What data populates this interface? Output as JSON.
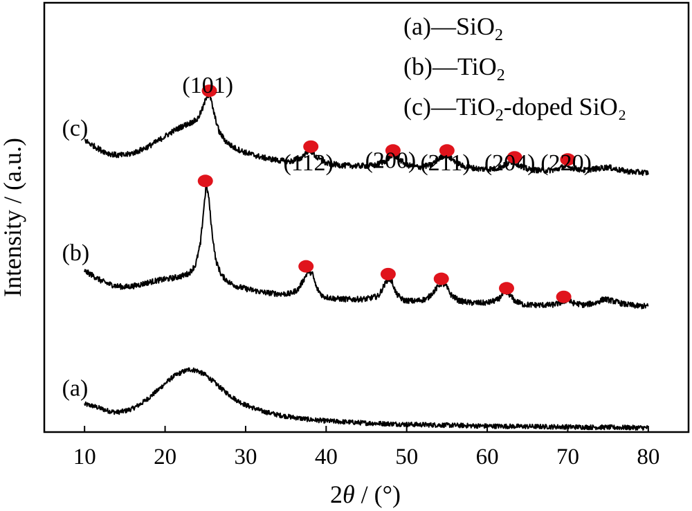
{
  "chart_data": {
    "type": "line",
    "xlabel_main": "2",
    "xlabel_theta": "θ",
    "xlabel_unit": " / (°)",
    "ylabel": "Intensity / (a.u.)",
    "xlim": [
      5,
      85
    ],
    "xticks": [
      10,
      20,
      30,
      40,
      50,
      60,
      70,
      80
    ],
    "tick_labels": [
      "10",
      "20",
      "30",
      "40",
      "50",
      "60",
      "70",
      "80"
    ],
    "grid": false,
    "marker_color": "#e0141c",
    "curve_labels": [
      {
        "id": "a",
        "text": "(a)",
        "x": 7.2,
        "y": 8.5
      },
      {
        "id": "b",
        "text": "(b)",
        "x": 7.2,
        "y": 40.0
      },
      {
        "id": "c",
        "text": "(c)",
        "x": 7.2,
        "y": 69.0
      }
    ],
    "legend": [
      {
        "label": "(a)",
        "dash": "—",
        "text": "SiO",
        "sub": "2",
        "tail": ""
      },
      {
        "label": "(b)",
        "dash": "—",
        "text": "TiO",
        "sub": "2",
        "tail": ""
      },
      {
        "label": "(c)",
        "dash": "—",
        "text": "TiO",
        "sub": "2",
        "tail": "-doped SiO₂"
      }
    ],
    "miller_indices": [
      {
        "label": "(101)",
        "x": 25.3,
        "y": 79.0
      },
      {
        "label": "(112)",
        "x": 37.8,
        "y": 61.0
      },
      {
        "label": "(200)",
        "x": 48.0,
        "y": 61.5
      },
      {
        "label": "(211)",
        "x": 54.8,
        "y": 61.0
      },
      {
        "label": "(204)",
        "x": 62.8,
        "y": 61.0
      },
      {
        "label": "(220)",
        "x": 69.8,
        "y": 61.0
      }
    ],
    "series": [
      {
        "id": "a",
        "name": "(a)",
        "noise": 0.55,
        "points": [
          [
            10.0,
            6.5
          ],
          [
            11.0,
            6.1
          ],
          [
            12.0,
            5.5
          ],
          [
            13.0,
            4.9
          ],
          [
            14.0,
            4.6
          ],
          [
            15.0,
            4.9
          ],
          [
            16.0,
            5.5
          ],
          [
            17.0,
            6.6
          ],
          [
            18.0,
            8.0
          ],
          [
            19.0,
            9.6
          ],
          [
            20.0,
            11.3
          ],
          [
            21.0,
            12.9
          ],
          [
            22.0,
            13.9
          ],
          [
            23.0,
            14.6
          ],
          [
            24.0,
            14.3
          ],
          [
            25.0,
            13.3
          ],
          [
            26.0,
            11.8
          ],
          [
            27.0,
            10.1
          ],
          [
            28.0,
            8.6
          ],
          [
            29.0,
            7.3
          ],
          [
            30.0,
            6.3
          ],
          [
            32.0,
            4.9
          ],
          [
            34.0,
            4.0
          ],
          [
            36.0,
            3.4
          ],
          [
            38.0,
            2.9
          ],
          [
            40.0,
            2.6
          ],
          [
            45.0,
            2.1
          ],
          [
            50.0,
            1.8
          ],
          [
            55.0,
            1.6
          ],
          [
            60.0,
            1.4
          ],
          [
            65.0,
            1.3
          ],
          [
            70.0,
            1.2
          ],
          [
            75.0,
            1.1
          ],
          [
            80.0,
            1.0
          ]
        ],
        "markers": []
      },
      {
        "id": "b",
        "name": "(b)",
        "noise": 0.65,
        "points": [
          [
            10.0,
            37.5
          ],
          [
            11.0,
            36.5
          ],
          [
            12.0,
            35.3
          ],
          [
            13.0,
            34.5
          ],
          [
            14.0,
            34.0
          ],
          [
            15.0,
            33.8
          ],
          [
            16.0,
            34.0
          ],
          [
            17.0,
            34.4
          ],
          [
            18.0,
            34.9
          ],
          [
            19.0,
            35.3
          ],
          [
            20.0,
            35.6
          ],
          [
            21.0,
            35.9
          ],
          [
            22.0,
            36.3
          ],
          [
            23.0,
            37.0
          ],
          [
            23.8,
            39.0
          ],
          [
            24.4,
            44.0
          ],
          [
            24.8,
            52.0
          ],
          [
            25.1,
            57.5
          ],
          [
            25.4,
            55.0
          ],
          [
            25.8,
            47.0
          ],
          [
            26.3,
            40.0
          ],
          [
            27.0,
            36.5
          ],
          [
            28.0,
            34.8
          ],
          [
            29.0,
            33.9
          ],
          [
            30.0,
            33.4
          ],
          [
            32.0,
            32.6
          ],
          [
            34.0,
            32.2
          ],
          [
            35.5,
            32.2
          ],
          [
            36.5,
            33.2
          ],
          [
            37.3,
            35.8
          ],
          [
            37.8,
            37.6
          ],
          [
            38.3,
            36.8
          ],
          [
            38.8,
            33.6
          ],
          [
            39.6,
            31.6
          ],
          [
            41.0,
            31.1
          ],
          [
            43.0,
            30.9
          ],
          [
            45.0,
            31.0
          ],
          [
            46.5,
            31.7
          ],
          [
            47.3,
            34.5
          ],
          [
            47.7,
            35.8
          ],
          [
            48.2,
            35.0
          ],
          [
            48.7,
            32.2
          ],
          [
            49.6,
            30.7
          ],
          [
            51.0,
            30.5
          ],
          [
            52.5,
            31.0
          ],
          [
            53.5,
            33.0
          ],
          [
            54.2,
            34.6
          ],
          [
            54.8,
            34.3
          ],
          [
            55.5,
            32.0
          ],
          [
            56.5,
            30.6
          ],
          [
            58.0,
            30.1
          ],
          [
            60.0,
            30.1
          ],
          [
            61.3,
            30.8
          ],
          [
            62.1,
            32.4
          ],
          [
            62.7,
            32.2
          ],
          [
            63.4,
            30.6
          ],
          [
            64.5,
            29.7
          ],
          [
            66.0,
            29.6
          ],
          [
            68.0,
            29.6
          ],
          [
            69.3,
            30.2
          ],
          [
            69.9,
            30.8
          ],
          [
            70.6,
            30.1
          ],
          [
            72.0,
            29.6
          ],
          [
            73.5,
            30.1
          ],
          [
            74.5,
            31.0
          ],
          [
            75.5,
            30.6
          ],
          [
            77.0,
            29.8
          ],
          [
            78.5,
            29.4
          ],
          [
            80.0,
            29.3
          ]
        ],
        "markers": [
          [
            25.0,
            58.5
          ],
          [
            37.5,
            38.6
          ],
          [
            47.7,
            36.8
          ],
          [
            54.3,
            35.7
          ],
          [
            62.4,
            33.5
          ],
          [
            69.5,
            31.5
          ]
        ]
      },
      {
        "id": "c",
        "name": "(c)",
        "noise": 0.65,
        "points": [
          [
            10.0,
            68.0
          ],
          [
            11.0,
            66.8
          ],
          [
            12.0,
            65.7
          ],
          [
            13.0,
            64.9
          ],
          [
            14.0,
            64.5
          ],
          [
            15.0,
            64.5
          ],
          [
            16.0,
            65.0
          ],
          [
            17.0,
            65.7
          ],
          [
            18.0,
            66.6
          ],
          [
            19.0,
            67.7
          ],
          [
            20.0,
            68.9
          ],
          [
            21.0,
            70.1
          ],
          [
            22.0,
            71.1
          ],
          [
            23.0,
            71.9
          ],
          [
            24.0,
            72.8
          ],
          [
            24.7,
            75.5
          ],
          [
            25.2,
            78.5
          ],
          [
            25.6,
            78.2
          ],
          [
            26.1,
            74.0
          ],
          [
            26.7,
            70.0
          ],
          [
            27.5,
            67.8
          ],
          [
            28.5,
            66.3
          ],
          [
            30.0,
            65.1
          ],
          [
            32.0,
            64.0
          ],
          [
            34.0,
            63.3
          ],
          [
            35.5,
            63.0
          ],
          [
            36.8,
            63.7
          ],
          [
            37.6,
            65.3
          ],
          [
            38.1,
            65.5
          ],
          [
            38.8,
            64.0
          ],
          [
            40.0,
            62.6
          ],
          [
            42.0,
            62.1
          ],
          [
            44.0,
            62.0
          ],
          [
            46.0,
            62.1
          ],
          [
            47.4,
            63.2
          ],
          [
            48.2,
            64.6
          ],
          [
            48.9,
            63.8
          ],
          [
            50.0,
            62.2
          ],
          [
            51.5,
            61.7
          ],
          [
            53.0,
            62.2
          ],
          [
            54.1,
            63.8
          ],
          [
            54.8,
            64.6
          ],
          [
            55.6,
            63.6
          ],
          [
            57.0,
            61.9
          ],
          [
            59.0,
            61.3
          ],
          [
            61.0,
            61.3
          ],
          [
            62.3,
            62.3
          ],
          [
            63.1,
            63.0
          ],
          [
            63.9,
            62.3
          ],
          [
            65.0,
            61.2
          ],
          [
            67.0,
            60.9
          ],
          [
            68.5,
            61.1
          ],
          [
            69.6,
            61.9
          ],
          [
            70.4,
            61.6
          ],
          [
            72.0,
            61.0
          ],
          [
            73.8,
            61.4
          ],
          [
            75.0,
            61.7
          ],
          [
            76.5,
            61.0
          ],
          [
            78.0,
            60.6
          ],
          [
            80.0,
            60.4
          ]
        ],
        "markers": [
          [
            25.5,
            79.5
          ],
          [
            38.1,
            66.5
          ],
          [
            48.3,
            65.6
          ],
          [
            55.0,
            65.6
          ],
          [
            63.4,
            64.0
          ],
          [
            70.0,
            63.5
          ]
        ]
      }
    ]
  }
}
